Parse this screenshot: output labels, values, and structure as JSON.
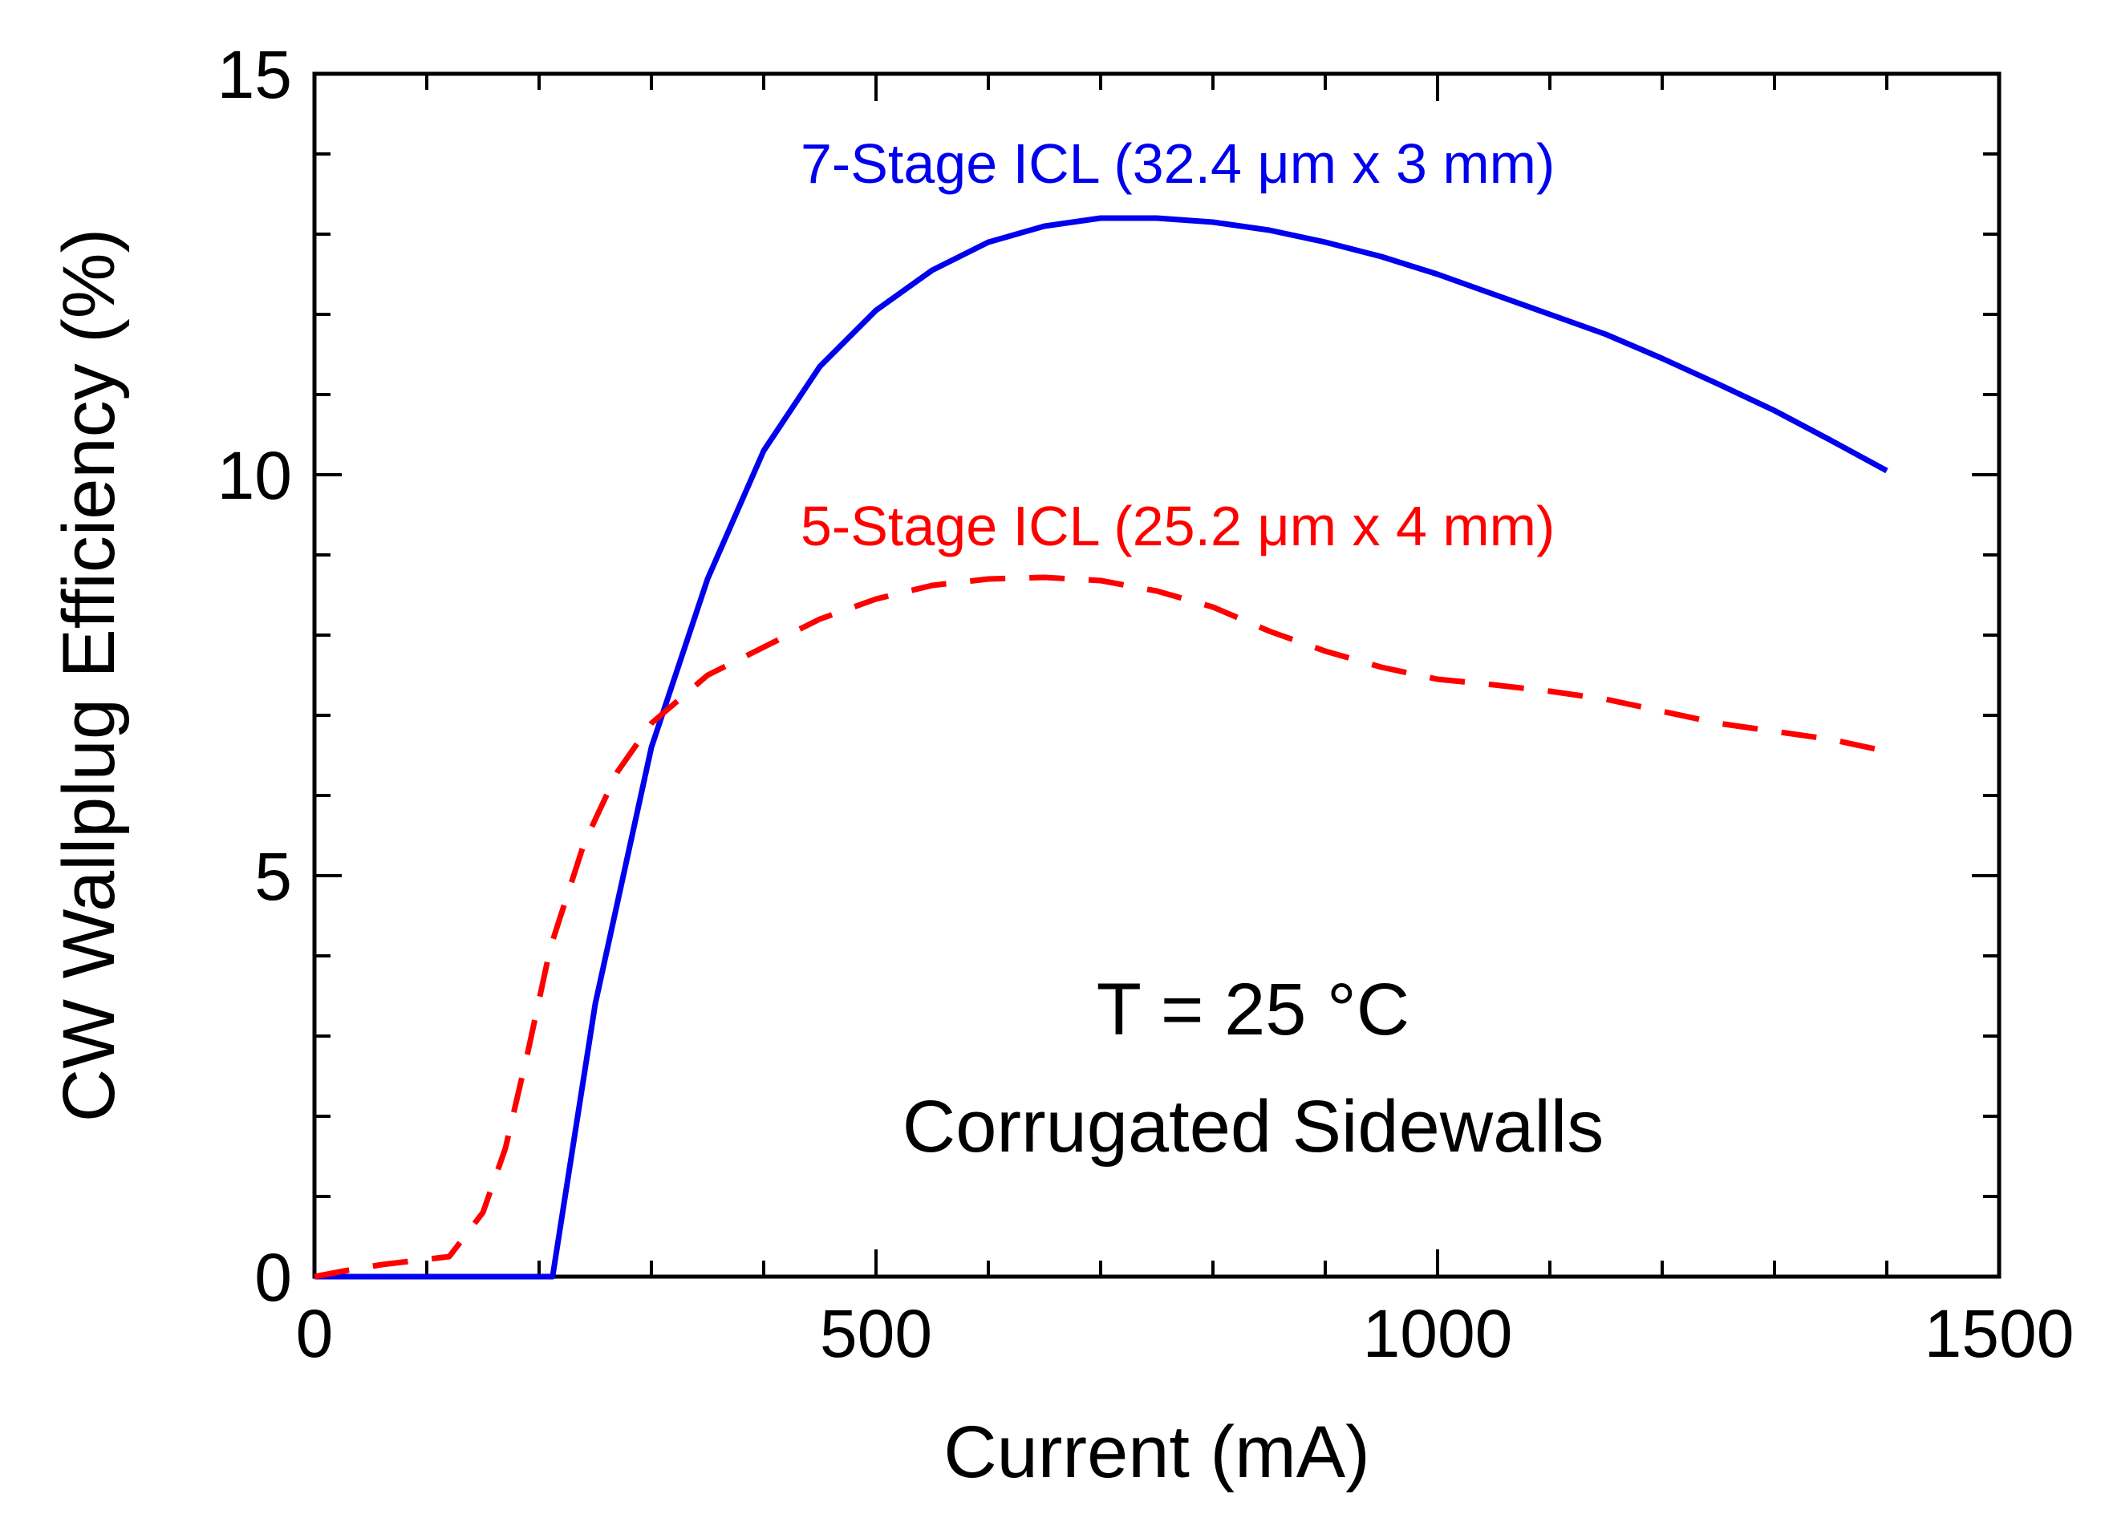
{
  "chart_data": {
    "type": "line",
    "title": "",
    "xlabel": "Current (mA)",
    "ylabel": "CW Wallplug Efficiency (%)",
    "xlim": [
      0,
      1500
    ],
    "ylim": [
      0,
      15
    ],
    "xticks": [
      0,
      500,
      1000,
      1500
    ],
    "yticks": [
      0,
      5,
      10,
      15
    ],
    "x_minor_step": 100,
    "y_minor_step": 1,
    "grid": false,
    "legend": "inline labels",
    "series": [
      {
        "name": "7-Stage ICL (32.4 μm x 3 mm)",
        "color": "#0000ee",
        "style": "solid",
        "x": [
          0,
          212,
          250,
          300,
          350,
          400,
          450,
          500,
          550,
          600,
          650,
          700,
          750,
          800,
          850,
          900,
          950,
          1000,
          1050,
          1100,
          1150,
          1200,
          1250,
          1300,
          1350,
          1400
        ],
        "y": [
          0,
          0,
          3.4,
          6.6,
          8.7,
          10.3,
          11.35,
          12.05,
          12.55,
          12.9,
          13.1,
          13.2,
          13.2,
          13.15,
          13.05,
          12.9,
          12.72,
          12.5,
          12.25,
          12.0,
          11.75,
          11.45,
          11.13,
          10.8,
          10.43,
          10.05
        ]
      },
      {
        "name": "5-Stage ICL (25.2 μm x 4 mm)",
        "color": "#ff0000",
        "style": "dashed",
        "x": [
          0,
          30,
          60,
          90,
          120,
          150,
          170,
          190,
          210,
          240,
          270,
          300,
          350,
          400,
          450,
          500,
          550,
          600,
          650,
          700,
          750,
          800,
          850,
          900,
          950,
          1000,
          1050,
          1100,
          1150,
          1200,
          1250,
          1300,
          1350,
          1400
        ],
        "y": [
          0,
          0.08,
          0.15,
          0.2,
          0.25,
          0.8,
          1.6,
          2.8,
          4.1,
          5.4,
          6.3,
          6.9,
          7.5,
          7.85,
          8.2,
          8.45,
          8.62,
          8.7,
          8.72,
          8.68,
          8.55,
          8.35,
          8.05,
          7.8,
          7.6,
          7.45,
          7.38,
          7.3,
          7.2,
          7.05,
          6.9,
          6.8,
          6.7,
          6.55
        ]
      }
    ],
    "annotations": [
      "T = 25 °C",
      "Corrugated Sidewalls"
    ]
  }
}
